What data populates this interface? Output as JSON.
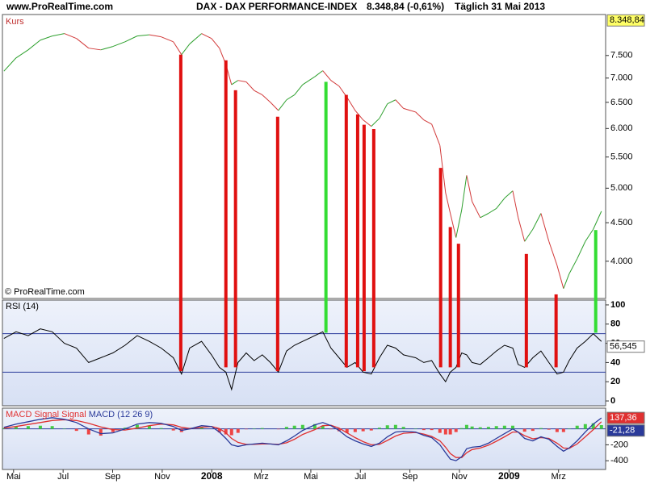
{
  "header": {
    "site": "www.ProRealTime.com",
    "instrument": "DAX - DAX PERFORMANCE-INDEX",
    "quote": "8.348,84 (-0,61%)",
    "period": "Täglich 31 Mai 2013"
  },
  "chart_data": [
    {
      "type": "line",
      "label": "Kurs",
      "copyright": "© ProRealTime.com",
      "log": true,
      "up_color": "#2ea02e",
      "down_color": "#d23a3a",
      "xlim": [
        -0.45,
        23.9
      ],
      "xticks": [
        {
          "value": 0,
          "label": "Mai"
        },
        {
          "value": 2,
          "label": "Jul"
        },
        {
          "value": 4,
          "label": "Sep"
        },
        {
          "value": 6,
          "label": "Nov"
        },
        {
          "value": 8,
          "label": "2008"
        },
        {
          "value": 10,
          "label": "Mrz"
        },
        {
          "value": 12,
          "label": "Mai"
        },
        {
          "value": 14,
          "label": "Jul"
        },
        {
          "value": 16,
          "label": "Sep"
        },
        {
          "value": 18,
          "label": "Nov"
        },
        {
          "value": 20,
          "label": "2009"
        },
        {
          "value": 22,
          "label": "Mrz"
        }
      ],
      "ylim": [
        3570,
        8500
      ],
      "yticks": [
        {
          "value": 4000,
          "label": "4.000"
        },
        {
          "value": 4500,
          "label": "4.500"
        },
        {
          "value": 5000,
          "label": "5.000"
        },
        {
          "value": 5500,
          "label": "5.500"
        },
        {
          "value": 6000,
          "label": "6.000"
        },
        {
          "value": 6500,
          "label": "6.500"
        },
        {
          "value": 7000,
          "label": "7.000"
        },
        {
          "value": 7500,
          "label": "7.500"
        }
      ],
      "last": {
        "value": 8348.84,
        "label": "8.348,84",
        "color": "#ffff66"
      },
      "x": [
        -0.39,
        0.1,
        0.59,
        1.08,
        1.56,
        2.05,
        2.54,
        3.03,
        3.52,
        4.01,
        4.5,
        4.99,
        5.48,
        5.96,
        6.45,
        6.78,
        7.11,
        7.59,
        7.99,
        8.31,
        8.57,
        8.8,
        9.06,
        9.39,
        9.71,
        10.04,
        10.37,
        10.69,
        11.02,
        11.34,
        11.67,
        12.16,
        12.48,
        12.81,
        13.14,
        13.46,
        13.79,
        14.11,
        14.44,
        14.77,
        15.09,
        15.42,
        15.74,
        16.23,
        16.56,
        16.88,
        17.21,
        17.44,
        17.63,
        17.86,
        18.09,
        18.29,
        18.51,
        18.84,
        19.17,
        19.49,
        19.82,
        20.15,
        20.37,
        20.63,
        20.96,
        21.29,
        21.61,
        21.94,
        22.2,
        22.43,
        22.75,
        23.08,
        23.4,
        23.73
      ],
      "values": [
        7150,
        7445,
        7630,
        7860,
        7960,
        8020,
        7900,
        7670,
        7630,
        7710,
        7820,
        7960,
        7990,
        7940,
        7820,
        7520,
        7770,
        8020,
        7900,
        7670,
        7300,
        6860,
        6950,
        6920,
        6740,
        6650,
        6500,
        6340,
        6550,
        6650,
        6860,
        7030,
        7160,
        6950,
        6830,
        6600,
        6340,
        6160,
        6040,
        6190,
        6470,
        6550,
        6380,
        6310,
        6160,
        6080,
        5700,
        4930,
        4630,
        4300,
        4680,
        5200,
        4800,
        4570,
        4630,
        4700,
        4850,
        4960,
        4570,
        4250,
        4410,
        4630,
        4250,
        3950,
        3680,
        3850,
        4030,
        4250,
        4410,
        4660
      ],
      "signals": {
        "x": [
          6.75,
          8.57,
          8.96,
          10.66,
          12.61,
          13.43,
          13.89,
          14.15,
          14.54,
          17.24,
          17.63,
          17.96,
          20.7,
          21.9,
          23.5
        ],
        "price": [
          7520,
          7390,
          6745,
          6220,
          6920,
          6650,
          6265,
          6070,
          5990,
          5320,
          4440,
          4220,
          4090,
          3615,
          4400
        ],
        "rsi": [
          31,
          35,
          35,
          31,
          71,
          35,
          35,
          31,
          35,
          35,
          35,
          35,
          35,
          35,
          71
        ],
        "colors": [
          "#e01010",
          "#e01010",
          "#e01010",
          "#e01010",
          "#33dd33",
          "#e01010",
          "#e01010",
          "#e01010",
          "#e01010",
          "#e01010",
          "#e01010",
          "#e01010",
          "#e01010",
          "#e01010",
          "#33dd33"
        ]
      }
    },
    {
      "type": "line",
      "label": "RSI (14)",
      "color": "#000000",
      "level_color": "#2a3a9a",
      "xlim": [
        -0.45,
        23.9
      ],
      "ylim": [
        -5,
        105
      ],
      "yticks": [
        0,
        20,
        40,
        60,
        80,
        100
      ],
      "levels": [
        30,
        70
      ],
      "last": {
        "value": 56.545,
        "label": "56,545",
        "color": "#ffffff"
      },
      "x": [
        -0.39,
        0.1,
        0.59,
        1.08,
        1.56,
        2.05,
        2.54,
        3.03,
        3.52,
        4.01,
        4.5,
        4.99,
        5.48,
        5.96,
        6.45,
        6.78,
        7.11,
        7.59,
        7.99,
        8.31,
        8.57,
        8.8,
        9.06,
        9.39,
        9.71,
        10.04,
        10.37,
        10.69,
        11.02,
        11.34,
        11.67,
        12.16,
        12.48,
        12.81,
        13.14,
        13.46,
        13.79,
        14.11,
        14.44,
        14.77,
        15.09,
        15.42,
        15.74,
        16.23,
        16.56,
        16.88,
        17.21,
        17.44,
        17.63,
        17.86,
        18.09,
        18.29,
        18.51,
        18.84,
        19.17,
        19.49,
        19.82,
        20.15,
        20.37,
        20.63,
        20.96,
        21.29,
        21.61,
        21.94,
        22.2,
        22.43,
        22.75,
        23.08,
        23.4,
        23.73
      ],
      "values": [
        65,
        72,
        68,
        75,
        72,
        60,
        55,
        40,
        45,
        50,
        58,
        68,
        62,
        55,
        45,
        28,
        55,
        62,
        48,
        35,
        30,
        12,
        40,
        50,
        42,
        48,
        40,
        30,
        52,
        58,
        62,
        68,
        72,
        55,
        45,
        35,
        40,
        30,
        28,
        45,
        58,
        55,
        48,
        45,
        40,
        42,
        28,
        20,
        30,
        35,
        50,
        48,
        40,
        38,
        45,
        52,
        58,
        55,
        38,
        35,
        45,
        52,
        40,
        28,
        30,
        42,
        55,
        62,
        70,
        62
      ]
    },
    {
      "type": "macd",
      "zero_color": "#2a3a9a",
      "hist_up": "#44cc44",
      "hist_down": "#ee4444",
      "xlim": [
        -0.45,
        23.9
      ],
      "ylim": [
        -510,
        260
      ],
      "yticks": [
        -400,
        -200
      ],
      "tags": [
        {
          "value": 137.36,
          "label": "137,36",
          "color": "#e03030"
        },
        {
          "value": -21.28,
          "label": "-21,28",
          "color": "#2a3a9a"
        }
      ],
      "x": [
        -0.39,
        0.1,
        0.59,
        1.08,
        1.56,
        2.05,
        2.54,
        3.03,
        3.52,
        4.01,
        4.5,
        4.99,
        5.48,
        5.96,
        6.45,
        6.78,
        7.11,
        7.59,
        7.99,
        8.31,
        8.57,
        8.8,
        9.06,
        9.39,
        9.71,
        10.04,
        10.37,
        10.69,
        11.02,
        11.34,
        11.67,
        12.16,
        12.48,
        12.81,
        13.14,
        13.46,
        13.79,
        14.11,
        14.44,
        14.77,
        15.09,
        15.42,
        15.74,
        16.23,
        16.56,
        16.88,
        17.21,
        17.44,
        17.63,
        17.86,
        18.09,
        18.29,
        18.51,
        18.84,
        19.17,
        19.49,
        19.82,
        20.15,
        20.37,
        20.63,
        20.96,
        21.29,
        21.61,
        21.94,
        22.2,
        22.43,
        22.75,
        23.08,
        23.4,
        23.73
      ],
      "series": [
        {
          "name": "MACD Signal Signal",
          "color": "#e03030",
          "values": [
            10,
            30,
            55,
            80,
            105,
            115,
            105,
            70,
            25,
            -10,
            -15,
            10,
            40,
            60,
            50,
            20,
            5,
            20,
            30,
            5,
            -50,
            -120,
            -170,
            -195,
            -195,
            -190,
            -190,
            -195,
            -175,
            -130,
            -70,
            -10,
            40,
            45,
            10,
            -50,
            -110,
            -160,
            -200,
            -195,
            -145,
            -90,
            -55,
            -45,
            -65,
            -95,
            -150,
            -230,
            -310,
            -360,
            -360,
            -300,
            -260,
            -240,
            -205,
            -155,
            -100,
            -40,
            -40,
            -85,
            -125,
            -110,
            -120,
            -180,
            -240,
            -245,
            -190,
            -100,
            -10,
            90
          ]
        },
        {
          "name": "MACD (12 26 9)",
          "color": "#2a3a9a",
          "values": [
            20,
            60,
            90,
            120,
            140,
            120,
            80,
            0,
            -60,
            -50,
            0,
            60,
            80,
            70,
            30,
            -20,
            0,
            40,
            30,
            -40,
            -120,
            -200,
            -220,
            -200,
            -190,
            -180,
            -190,
            -200,
            -150,
            -90,
            -20,
            50,
            80,
            40,
            -20,
            -100,
            -150,
            -190,
            -220,
            -180,
            -100,
            -40,
            -30,
            -40,
            -80,
            -110,
            -200,
            -300,
            -380,
            -400,
            -350,
            -250,
            -230,
            -220,
            -180,
            -120,
            -60,
            0,
            -40,
            -120,
            -150,
            -100,
            -130,
            -220,
            -280,
            -240,
            -150,
            -40,
            60,
            137
          ]
        }
      ],
      "histogram": [
        10,
        30,
        35,
        40,
        35,
        5,
        -25,
        -70,
        -85,
        -40,
        15,
        50,
        40,
        10,
        -20,
        -40,
        -5,
        20,
        0,
        -45,
        -70,
        -80,
        -50,
        -5,
        5,
        10,
        0,
        -5,
        25,
        40,
        50,
        60,
        40,
        -5,
        -30,
        -50,
        -40,
        -30,
        -20,
        15,
        45,
        50,
        25,
        5,
        -15,
        -15,
        -50,
        -70,
        -70,
        -40,
        10,
        50,
        30,
        20,
        25,
        35,
        40,
        40,
        0,
        -35,
        -25,
        10,
        -10,
        -40,
        -40,
        5,
        40,
        60,
        70,
        47
      ]
    }
  ]
}
